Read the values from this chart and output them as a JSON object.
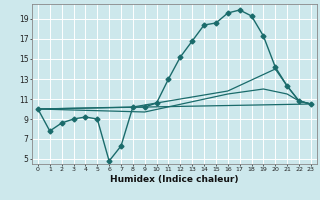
{
  "xlabel": "Humidex (Indice chaleur)",
  "bg_color": "#cde8ec",
  "grid_color": "#ffffff",
  "line_color": "#1a6b6b",
  "xlim": [
    -0.5,
    23.5
  ],
  "ylim": [
    4.5,
    20.5
  ],
  "xticks": [
    0,
    1,
    2,
    3,
    4,
    5,
    6,
    7,
    8,
    9,
    10,
    11,
    12,
    13,
    14,
    15,
    16,
    17,
    18,
    19,
    20,
    21,
    22,
    23
  ],
  "yticks": [
    5,
    7,
    9,
    11,
    13,
    15,
    17,
    19
  ],
  "series": [
    {
      "x": [
        0,
        1,
        2,
        3,
        4,
        5,
        6,
        7,
        8,
        9,
        10,
        11,
        12,
        13,
        14,
        15,
        16,
        17,
        18,
        19,
        20,
        21,
        22,
        23
      ],
      "y": [
        10.0,
        7.8,
        8.6,
        9.0,
        9.2,
        9.0,
        4.8,
        6.3,
        10.2,
        10.2,
        10.6,
        13.0,
        15.2,
        16.8,
        18.4,
        18.6,
        19.6,
        19.9,
        19.3,
        17.3,
        14.2,
        12.3,
        10.8,
        10.5
      ],
      "marker": "D",
      "markersize": 2.5,
      "linewidth": 1.0
    },
    {
      "x": [
        0,
        23
      ],
      "y": [
        10.0,
        10.5
      ],
      "marker": null,
      "linewidth": 0.9
    },
    {
      "x": [
        0,
        9,
        16,
        19,
        21,
        22,
        23
      ],
      "y": [
        10.0,
        9.7,
        11.5,
        12.0,
        11.5,
        10.8,
        10.5
      ],
      "marker": null,
      "linewidth": 0.9
    },
    {
      "x": [
        0,
        8,
        16,
        20,
        21,
        22,
        23
      ],
      "y": [
        10.0,
        10.2,
        11.8,
        14.0,
        12.3,
        10.8,
        10.5
      ],
      "marker": null,
      "linewidth": 0.9
    }
  ]
}
